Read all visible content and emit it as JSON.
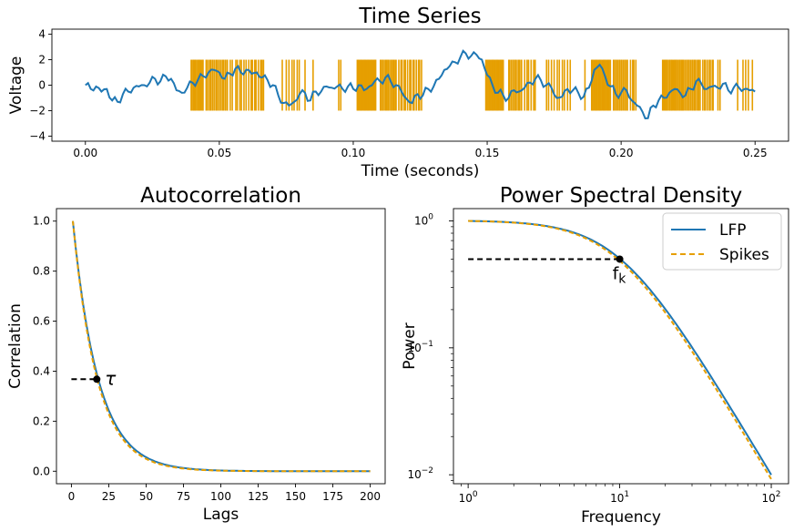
{
  "chart_data": [
    {
      "type": "line",
      "title": "Time Series",
      "xlabel": "Time (seconds)",
      "ylabel": "Voltage",
      "xlim": [
        -0.0125,
        0.2625
      ],
      "ylim": [
        -4.4,
        4.4
      ],
      "xticks": [
        0.0,
        0.05,
        0.1,
        0.15,
        0.2,
        0.25
      ],
      "xtick_labels": [
        "0.00",
        "0.05",
        "0.10",
        "0.15",
        "0.20",
        "0.25"
      ],
      "yticks": [
        -4,
        -2,
        0,
        2,
        4
      ],
      "ytick_labels": [
        "−4",
        "−2",
        "0",
        "2",
        "4"
      ],
      "colors": {
        "lfp": "#1f77b4",
        "spikes": "#e69f00"
      },
      "lfp_keypoints": [
        [
          0.0,
          0.0
        ],
        [
          0.002,
          -0.3
        ],
        [
          0.004,
          -0.1
        ],
        [
          0.006,
          -0.5
        ],
        [
          0.008,
          -0.3
        ],
        [
          0.01,
          -1.2
        ],
        [
          0.012,
          -1.3
        ],
        [
          0.014,
          -0.7
        ],
        [
          0.016,
          -0.5
        ],
        [
          0.018,
          -0.2
        ],
        [
          0.02,
          -0.1
        ],
        [
          0.022,
          0.0
        ],
        [
          0.024,
          0.2
        ],
        [
          0.026,
          0.5
        ],
        [
          0.028,
          0.3
        ],
        [
          0.03,
          0.7
        ],
        [
          0.032,
          0.5
        ],
        [
          0.034,
          -0.4
        ],
        [
          0.036,
          -0.6
        ],
        [
          0.038,
          -0.2
        ],
        [
          0.04,
          0.2
        ],
        [
          0.042,
          0.4
        ],
        [
          0.044,
          0.7
        ],
        [
          0.046,
          1.0
        ],
        [
          0.048,
          1.2
        ],
        [
          0.05,
          1.0
        ],
        [
          0.052,
          0.5
        ],
        [
          0.054,
          0.9
        ],
        [
          0.056,
          1.3
        ],
        [
          0.058,
          1.0
        ],
        [
          0.06,
          1.2
        ],
        [
          0.062,
          0.9
        ],
        [
          0.064,
          1.0
        ],
        [
          0.066,
          0.6
        ],
        [
          0.068,
          0.4
        ],
        [
          0.07,
          0.0
        ],
        [
          0.072,
          -0.8
        ],
        [
          0.074,
          -1.4
        ],
        [
          0.076,
          -1.6
        ],
        [
          0.078,
          -1.3
        ],
        [
          0.08,
          -0.7
        ],
        [
          0.082,
          -0.6
        ],
        [
          0.084,
          -1.2
        ],
        [
          0.086,
          -0.5
        ],
        [
          0.088,
          -0.5
        ],
        [
          0.09,
          -0.1
        ],
        [
          0.092,
          -0.2
        ],
        [
          0.094,
          -0.1
        ],
        [
          0.096,
          -0.3
        ],
        [
          0.098,
          -0.1
        ],
        [
          0.1,
          -0.3
        ],
        [
          0.102,
          0.0
        ],
        [
          0.104,
          -0.4
        ],
        [
          0.106,
          -0.1
        ],
        [
          0.108,
          0.3
        ],
        [
          0.11,
          0.3
        ],
        [
          0.112,
          0.6
        ],
        [
          0.114,
          0.3
        ],
        [
          0.116,
          0.0
        ],
        [
          0.118,
          -0.5
        ],
        [
          0.12,
          -1.1
        ],
        [
          0.122,
          -1.4
        ],
        [
          0.124,
          -0.7
        ],
        [
          0.126,
          -0.8
        ],
        [
          0.128,
          -0.3
        ],
        [
          0.13,
          -0.1
        ],
        [
          0.132,
          0.5
        ],
        [
          0.134,
          1.2
        ],
        [
          0.136,
          1.5
        ],
        [
          0.138,
          1.8
        ],
        [
          0.14,
          2.2
        ],
        [
          0.142,
          2.5
        ],
        [
          0.144,
          2.3
        ],
        [
          0.146,
          2.4
        ],
        [
          0.148,
          2.0
        ],
        [
          0.15,
          0.8
        ],
        [
          0.152,
          0.0
        ],
        [
          0.154,
          -0.6
        ],
        [
          0.156,
          -0.8
        ],
        [
          0.158,
          -1.0
        ],
        [
          0.16,
          -0.4
        ],
        [
          0.162,
          -0.5
        ],
        [
          0.164,
          -0.2
        ],
        [
          0.166,
          0.2
        ],
        [
          0.168,
          0.5
        ],
        [
          0.17,
          0.4
        ],
        [
          0.172,
          0.0
        ],
        [
          0.174,
          -0.2
        ],
        [
          0.176,
          -1.0
        ],
        [
          0.178,
          -0.9
        ],
        [
          0.18,
          -0.3
        ],
        [
          0.182,
          -0.4
        ],
        [
          0.184,
          -0.6
        ],
        [
          0.186,
          -0.9
        ],
        [
          0.188,
          -0.2
        ],
        [
          0.19,
          1.2
        ],
        [
          0.192,
          1.6
        ],
        [
          0.194,
          0.7
        ],
        [
          0.196,
          -0.1
        ],
        [
          0.198,
          -0.7
        ],
        [
          0.2,
          -0.6
        ],
        [
          0.202,
          -0.4
        ],
        [
          0.204,
          -1.2
        ],
        [
          0.206,
          -1.6
        ],
        [
          0.208,
          -2.1
        ],
        [
          0.21,
          -2.6
        ],
        [
          0.212,
          -1.6
        ],
        [
          0.214,
          -1.2
        ],
        [
          0.216,
          -1.0
        ],
        [
          0.218,
          -0.6
        ],
        [
          0.22,
          -0.3
        ],
        [
          0.222,
          -0.6
        ],
        [
          0.224,
          -0.8
        ],
        [
          0.226,
          -0.3
        ],
        [
          0.228,
          0.3
        ],
        [
          0.23,
          0.1
        ],
        [
          0.232,
          -0.3
        ],
        [
          0.234,
          -0.1
        ],
        [
          0.236,
          -0.2
        ],
        [
          0.238,
          0.1
        ],
        [
          0.24,
          -0.4
        ],
        [
          0.242,
          -0.2
        ],
        [
          0.244,
          -0.2
        ],
        [
          0.246,
          -0.3
        ],
        [
          0.248,
          -0.4
        ],
        [
          0.25,
          -0.5
        ]
      ],
      "spike_bursts": [
        [
          0.0395,
          0.044,
          14
        ],
        [
          0.045,
          0.053,
          18
        ],
        [
          0.053,
          0.055,
          3
        ],
        [
          0.056,
          0.06,
          6
        ],
        [
          0.061,
          0.066,
          8
        ],
        [
          0.0665,
          0.0675,
          1
        ],
        [
          0.0735,
          0.0735,
          1
        ],
        [
          0.075,
          0.076,
          2
        ],
        [
          0.077,
          0.08,
          4
        ],
        [
          0.082,
          0.082,
          1
        ],
        [
          0.085,
          0.085,
          1
        ],
        [
          0.0945,
          0.0955,
          2
        ],
        [
          0.1015,
          0.1085,
          28
        ],
        [
          0.11,
          0.116,
          16
        ],
        [
          0.117,
          0.1255,
          14
        ],
        [
          0.1495,
          0.156,
          22
        ],
        [
          0.158,
          0.163,
          12
        ],
        [
          0.164,
          0.168,
          6
        ],
        [
          0.172,
          0.174,
          3
        ],
        [
          0.175,
          0.18,
          6
        ],
        [
          0.181,
          0.182,
          1
        ],
        [
          0.1865,
          0.1865,
          1
        ],
        [
          0.189,
          0.196,
          24
        ],
        [
          0.197,
          0.2025,
          14
        ],
        [
          0.2035,
          0.2055,
          4
        ],
        [
          0.2155,
          0.223,
          22
        ],
        [
          0.223,
          0.2295,
          16
        ],
        [
          0.2305,
          0.2345,
          8
        ],
        [
          0.236,
          0.237,
          2
        ],
        [
          0.2435,
          0.2435,
          1
        ],
        [
          0.2455,
          0.2475,
          3
        ],
        [
          0.249,
          0.249,
          1
        ]
      ],
      "spike_range": [
        -2,
        2
      ]
    },
    {
      "type": "line",
      "title": "Autocorrelation",
      "xlabel": "Lags",
      "ylabel": "Correlation",
      "xlim": [
        -10,
        210
      ],
      "ylim": [
        -0.05,
        1.05
      ],
      "xticks": [
        0,
        25,
        50,
        75,
        100,
        125,
        150,
        175,
        200
      ],
      "xtick_labels": [
        "0",
        "25",
        "50",
        "75",
        "100",
        "125",
        "150",
        "175",
        "200"
      ],
      "yticks": [
        0.0,
        0.2,
        0.4,
        0.6,
        0.8,
        1.0
      ],
      "ytick_labels": [
        "0.0",
        "0.2",
        "0.4",
        "0.6",
        "0.8",
        "1.0"
      ],
      "lag_range": [
        1,
        200
      ],
      "lfp_tau": 17,
      "spikes_tau": 16.3,
      "marker": {
        "x": 17,
        "y": 0.3679,
        "label": "τ"
      }
    },
    {
      "type": "line",
      "title": "Power Spectral Density",
      "xlabel": "Frequency",
      "ylabel": "Power",
      "xscale": "log",
      "yscale": "log",
      "xlim": [
        0.8,
        130
      ],
      "ylim": [
        0.0085,
        1.25
      ],
      "xticks": [
        1,
        10,
        100
      ],
      "yticks": [
        0.01,
        0.1,
        1
      ],
      "fk_lfp": 10,
      "fk_spikes": 9.6,
      "freq_range": [
        1,
        100
      ],
      "marker": {
        "x": 10,
        "y": 0.5,
        "label": "f",
        "label_sub": "k"
      },
      "series": [
        {
          "name": "LFP",
          "color": "#1f77b4",
          "style": "solid"
        },
        {
          "name": "Spikes",
          "color": "#e69f00",
          "style": "dashed"
        }
      ],
      "legend": "top-right"
    }
  ]
}
